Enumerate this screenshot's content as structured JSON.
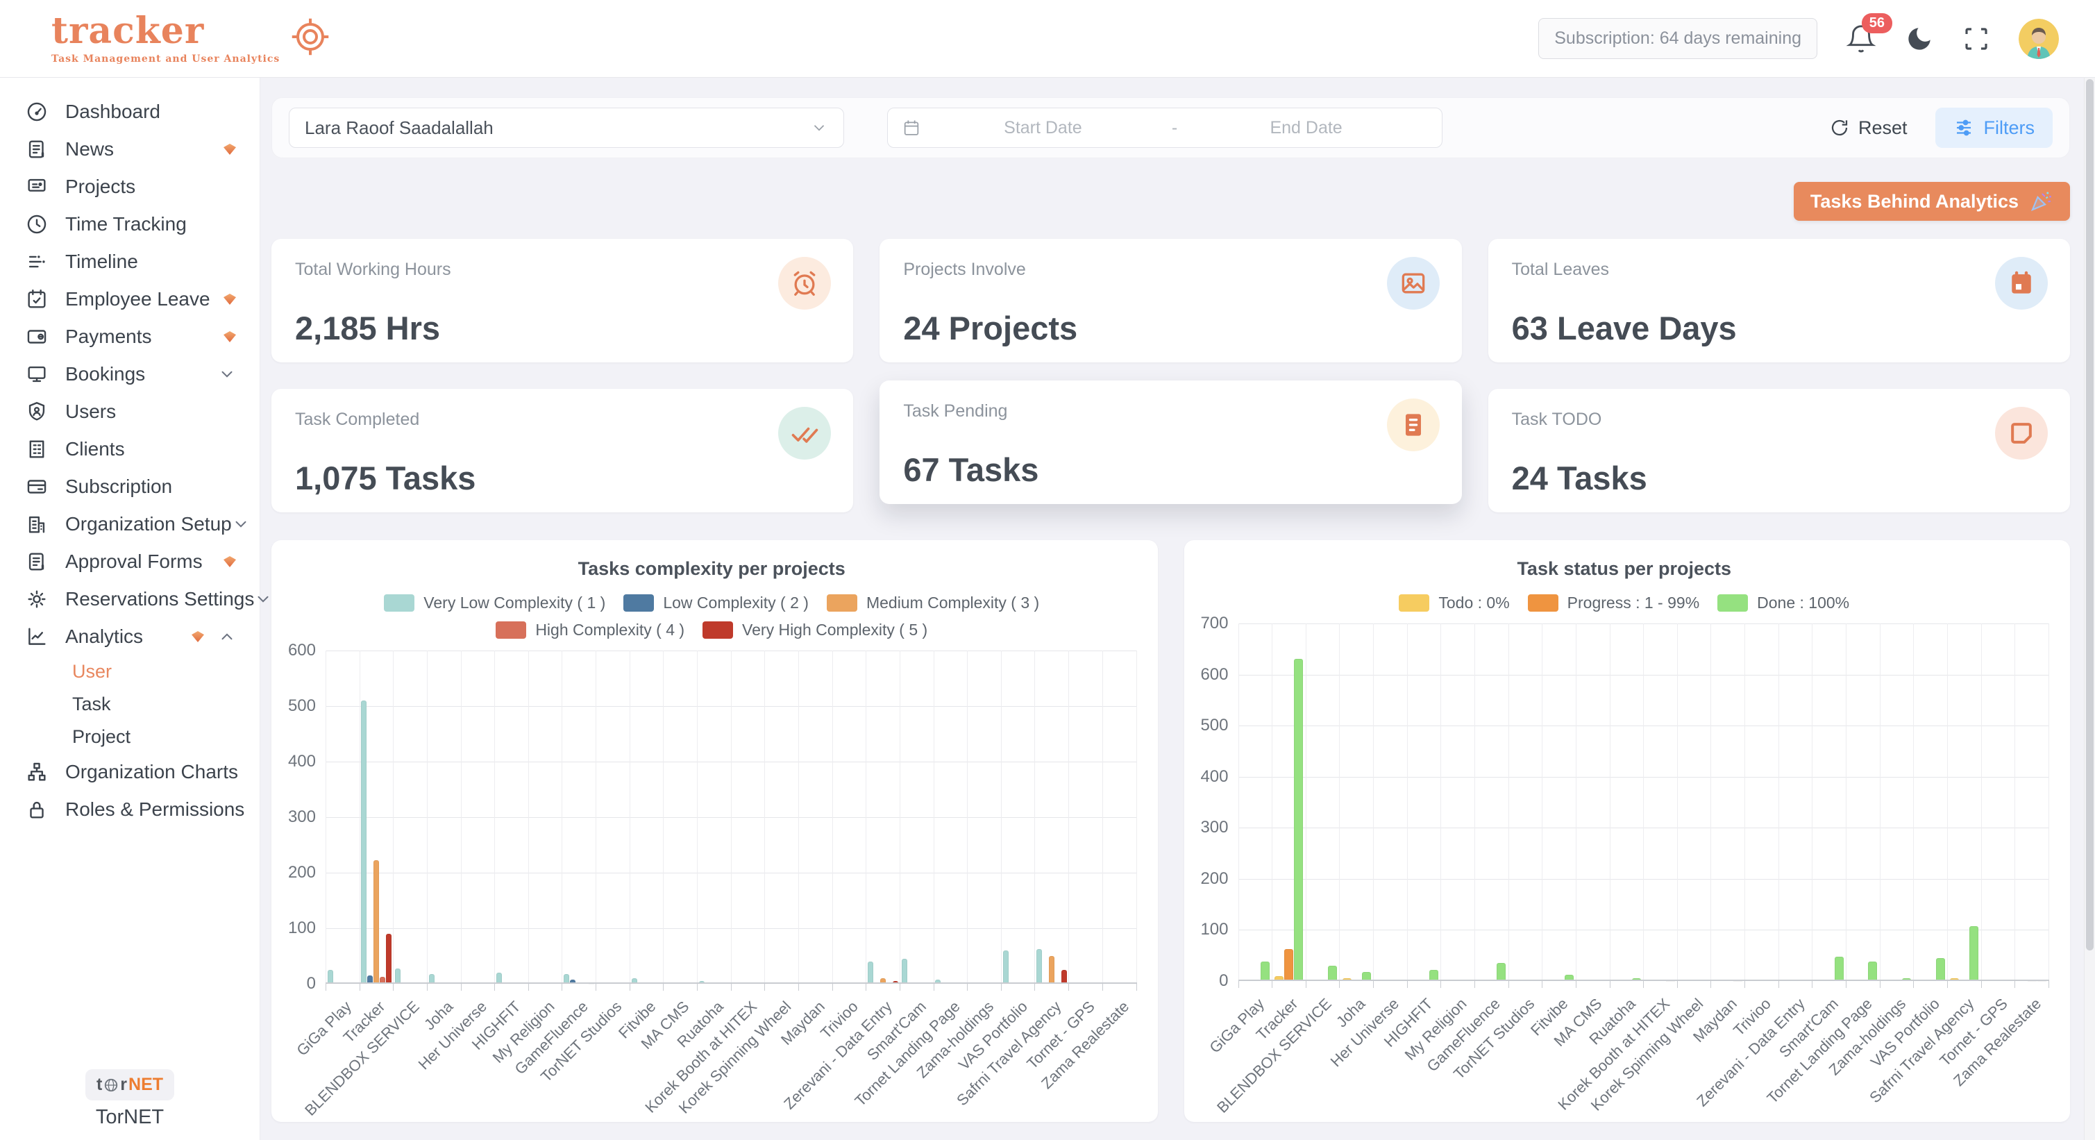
{
  "brand": {
    "name": "tracker",
    "tagline": "Task Management and User Analytics"
  },
  "header": {
    "subscription": "Subscription: 64 days remaining",
    "notifications": "56"
  },
  "sidebar": {
    "items": [
      {
        "label": "Dashboard",
        "icon": "gauge"
      },
      {
        "label": "News",
        "icon": "news",
        "badge": true
      },
      {
        "label": "Projects",
        "icon": "presentation"
      },
      {
        "label": "Time Tracking",
        "icon": "clock"
      },
      {
        "label": "Timeline",
        "icon": "timeline"
      },
      {
        "label": "Employee Leave",
        "icon": "calendar-check",
        "badge": true
      },
      {
        "label": "Payments",
        "icon": "wallet",
        "badge": true
      },
      {
        "label": "Bookings",
        "icon": "monitor",
        "chevron": "down"
      },
      {
        "label": "Users",
        "icon": "shield-user"
      },
      {
        "label": "Clients",
        "icon": "building"
      },
      {
        "label": "Subscription",
        "icon": "credit-card"
      },
      {
        "label": "Organization Setup",
        "icon": "org-building",
        "chevron": "down"
      },
      {
        "label": "Approval Forms",
        "icon": "doc-lines",
        "badge": true
      },
      {
        "label": "Reservations Settings",
        "icon": "gear",
        "chevron": "down"
      },
      {
        "label": "Analytics",
        "icon": "chart-line",
        "badge": true,
        "chevron": "up",
        "children": [
          {
            "label": "User",
            "active": true
          },
          {
            "label": "Task",
            "active": false
          },
          {
            "label": "Project",
            "active": false
          }
        ]
      },
      {
        "label": "Organization Charts",
        "icon": "org-chart"
      },
      {
        "label": "Roles & Permissions",
        "icon": "lock"
      }
    ],
    "footer": {
      "logo_prefix": "t",
      "logo_mid": "r",
      "logo_suffix": "NET",
      "label": "TorNET"
    }
  },
  "filters": {
    "user_select": "Lara Raoof Saadalallah",
    "start_date_placeholder": "Start Date",
    "range_separator": "-",
    "end_date_placeholder": "End Date",
    "reset_label": "Reset",
    "filters_label": "Filters"
  },
  "actions": {
    "tasks_behind_label": "Tasks Behind Analytics"
  },
  "stats": [
    {
      "label": "Total Working Hours",
      "value": "2,185 Hrs",
      "icon": "alarm-clock",
      "icon_color": "#e07a52",
      "icon_bg": "#fcebdf",
      "elevated": false
    },
    {
      "label": "Projects Involve",
      "value": "24 Projects",
      "icon": "image",
      "icon_color": "#e07a52",
      "icon_bg": "#dfecf8",
      "elevated": false
    },
    {
      "label": "Total Leaves",
      "value": "63 Leave Days",
      "icon": "calendar-solid",
      "icon_color": "#e07a52",
      "icon_bg": "#dfecf8",
      "elevated": false
    },
    {
      "label": "Task Completed",
      "value": "1,075 Tasks",
      "icon": "double-check",
      "icon_color": "#e07a52",
      "icon_bg": "#dcefe9",
      "elevated": false
    },
    {
      "label": "Task Pending",
      "value": "67 Tasks",
      "icon": "list-solid",
      "icon_color": "#e07a52",
      "icon_bg": "#fdf1dc",
      "elevated": true
    },
    {
      "label": "Task TODO",
      "value": "24 Tasks",
      "icon": "square-notch",
      "icon_color": "#e07a52",
      "icon_bg": "#fbe5dc",
      "elevated": false
    }
  ],
  "chart_data": [
    {
      "type": "bar",
      "title": "Tasks complexity per projects",
      "xlabel": "",
      "ylabel": "",
      "ylim": [
        0,
        600
      ],
      "yticks": [
        0,
        100,
        200,
        300,
        400,
        500,
        600
      ],
      "grid": true,
      "legend_position": "top",
      "categories": [
        "GiGa Play",
        "Tracker",
        "BLENDBOX SERVICE",
        "Joha",
        "Her Universe",
        "HIGHFIT",
        "My Religion",
        "GameFluence",
        "TorNET Studios",
        "Fitvibe",
        "MA CMS",
        "Ruatoha",
        "Korek Booth at HITEX",
        "Korek Spinning Wheel",
        "Maydan",
        "Trivioo",
        "Zerevani - Data Entry",
        "Smart'Cam",
        "Tornet Landing Page",
        "Zama-holdings",
        "VAS Portfolio",
        "Safrni Travel Agency",
        "Tornet - GPS",
        "Zama Realestate"
      ],
      "series": [
        {
          "name": "Very Low Complexity ( 1 )",
          "color": "#a9d7d3",
          "values": [
            25,
            510,
            28,
            18,
            2,
            20,
            0,
            18,
            0,
            10,
            0,
            5,
            0,
            0,
            0,
            2,
            40,
            45,
            8,
            0,
            60,
            62,
            0,
            0
          ]
        },
        {
          "name": "Low Complexity ( 2 )",
          "color": "#4f7aa1",
          "values": [
            0,
            15,
            0,
            0,
            0,
            0,
            0,
            8,
            0,
            0,
            0,
            0,
            0,
            0,
            0,
            0,
            0,
            0,
            0,
            0,
            0,
            0,
            0,
            0
          ]
        },
        {
          "name": "Medium Complexity ( 3 )",
          "color": "#eba45e",
          "values": [
            0,
            222,
            0,
            0,
            0,
            2,
            0,
            3,
            0,
            0,
            0,
            0,
            0,
            0,
            0,
            0,
            10,
            0,
            0,
            0,
            0,
            50,
            0,
            3
          ]
        },
        {
          "name": "High Complexity ( 4 )",
          "color": "#d7705a",
          "values": [
            0,
            13,
            0,
            0,
            0,
            0,
            0,
            0,
            0,
            0,
            0,
            0,
            0,
            0,
            0,
            0,
            0,
            0,
            0,
            0,
            0,
            0,
            0,
            0
          ]
        },
        {
          "name": "Very High Complexity ( 5 )",
          "color": "#bf3a2b",
          "values": [
            0,
            90,
            0,
            0,
            0,
            0,
            0,
            1,
            0,
            0,
            0,
            0,
            0,
            0,
            0,
            0,
            5,
            0,
            0,
            0,
            0,
            25,
            0,
            2
          ]
        }
      ]
    },
    {
      "type": "bar",
      "title": "Task status per projects",
      "xlabel": "",
      "ylabel": "",
      "ylim": [
        0,
        700
      ],
      "yticks": [
        0,
        100,
        200,
        300,
        400,
        500,
        600,
        700
      ],
      "grid": true,
      "legend_position": "top",
      "categories": [
        "GiGa Play",
        "Tracker",
        "BLENDBOX SERVICE",
        "Joha",
        "Her Universe",
        "HIGHFIT",
        "My Religion",
        "GameFluence",
        "TorNET Studios",
        "Fitvibe",
        "MA CMS",
        "Ruatoha",
        "Korek Booth at HITEX",
        "Korek Spinning Wheel",
        "Maydan",
        "Trivioo",
        "Zerevani - Data Entry",
        "Smart'Cam",
        "Tornet Landing Page",
        "Zama-holdings",
        "VAS Portfolio",
        "Safrni Travel Agency",
        "Tornet - GPS",
        "Zama Realestate"
      ],
      "series": [
        {
          "name": "Todo : 0%",
          "color": "#f6cc60",
          "values": [
            0,
            10,
            0,
            5,
            0,
            0,
            0,
            0,
            0,
            0,
            0,
            0,
            0,
            0,
            0,
            0,
            0,
            0,
            0,
            0,
            0,
            5,
            0,
            0
          ]
        },
        {
          "name": "Progress : 1 - 99%",
          "color": "#ef9440",
          "values": [
            0,
            62,
            0,
            0,
            0,
            0,
            0,
            0,
            0,
            0,
            0,
            0,
            0,
            0,
            0,
            0,
            0,
            0,
            0,
            0,
            0,
            0,
            0,
            2
          ]
        },
        {
          "name": "Done : 100%",
          "color": "#95e180",
          "values": [
            38,
            630,
            30,
            18,
            0,
            22,
            0,
            35,
            0,
            12,
            0,
            5,
            2,
            0,
            2,
            3,
            0,
            48,
            38,
            5,
            45,
            108,
            3,
            2
          ]
        }
      ]
    }
  ]
}
